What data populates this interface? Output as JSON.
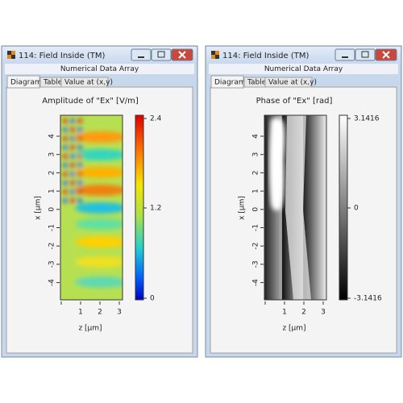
{
  "windows": [
    {
      "title": "114: Field Inside (TM)",
      "subtitle": "Numerical Data Array",
      "tabs": [
        "Diagram",
        "Table",
        "Value at (x,y)"
      ],
      "plot": {
        "title": "Amplitude of \"Ex\"   [V/m]",
        "x_label": "z [µm]",
        "y_label": "x [µm]",
        "x_ticks": [
          "1",
          "2",
          "3"
        ],
        "y_ticks": [
          "4",
          "3",
          "2",
          "1",
          "0",
          "-1",
          "-2",
          "-3",
          "-4"
        ],
        "colorbar_ticks": [
          "2.4",
          "1.2",
          "0"
        ]
      }
    },
    {
      "title": "114: Field Inside (TM)",
      "subtitle": "Numerical Data Array",
      "tabs": [
        "Diagram",
        "Table",
        "Value at (x,y)"
      ],
      "plot": {
        "title": "Phase of \"Ex\"   [rad]",
        "x_label": "z [µm]",
        "y_label": "x [µm]",
        "x_ticks": [
          "1",
          "2",
          "3"
        ],
        "y_ticks": [
          "4",
          "3",
          "2",
          "1",
          "0",
          "-1",
          "-2",
          "-3",
          "-4"
        ],
        "colorbar_ticks": [
          "3.1416",
          "0",
          "-3.1416"
        ]
      }
    }
  ]
}
